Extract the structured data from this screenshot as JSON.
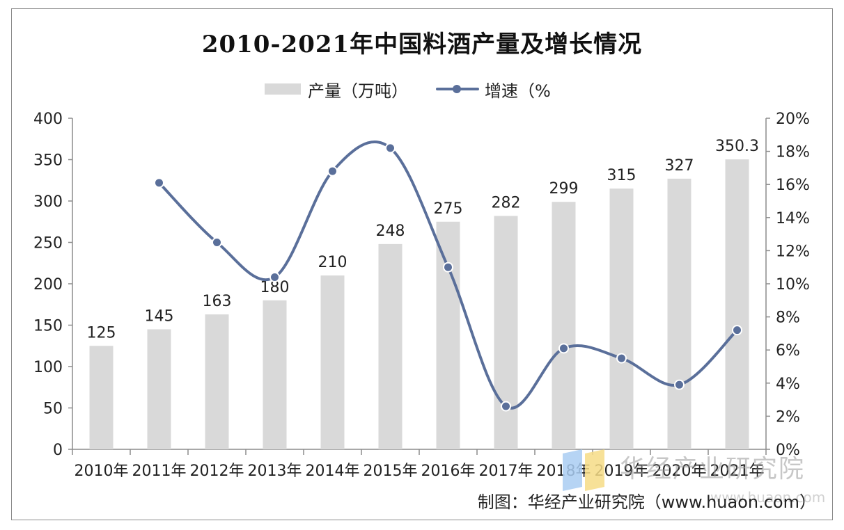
{
  "chart_data": {
    "type": "bar",
    "title": "2010-2021年中国料酒产量及增长情况",
    "categories": [
      "2010年",
      "2011年",
      "2012年",
      "2013年",
      "2014年",
      "2015年",
      "2016年",
      "2017年",
      "2018年",
      "2019年",
      "2020年",
      "2021年"
    ],
    "series": [
      {
        "name": "产量（万吨）",
        "type": "bar",
        "axis": "left",
        "values": [
          125,
          145,
          163,
          180,
          210,
          248,
          275,
          282,
          299,
          315,
          327,
          350.3
        ],
        "labels": [
          "125",
          "145",
          "163",
          "180",
          "210",
          "248",
          "275",
          "282",
          "299",
          "315",
          "327",
          "350.3"
        ],
        "color": "#d9d9d9"
      },
      {
        "name": "增速（%",
        "type": "line",
        "axis": "right",
        "values": [
          null,
          16.1,
          12.5,
          10.4,
          16.8,
          18.2,
          11.0,
          2.6,
          6.1,
          5.5,
          3.9,
          7.2
        ],
        "color": "#5a6f9a"
      }
    ],
    "y_left": {
      "ylim": [
        0,
        400
      ],
      "ticks": [
        "0",
        "50",
        "100",
        "150",
        "200",
        "250",
        "300",
        "350",
        "400"
      ]
    },
    "y_right": {
      "ylim": [
        0,
        20
      ],
      "ticks": [
        "0%",
        "2%",
        "4%",
        "6%",
        "8%",
        "10%",
        "12%",
        "14%",
        "16%",
        "18%",
        "20%"
      ]
    },
    "grid": false,
    "legend_position": "top-center"
  },
  "source_note": "制图：华经产业研究院（www.huaon.com）",
  "watermark": "华经产业研究院",
  "watermark_url": "www.huaon.com"
}
